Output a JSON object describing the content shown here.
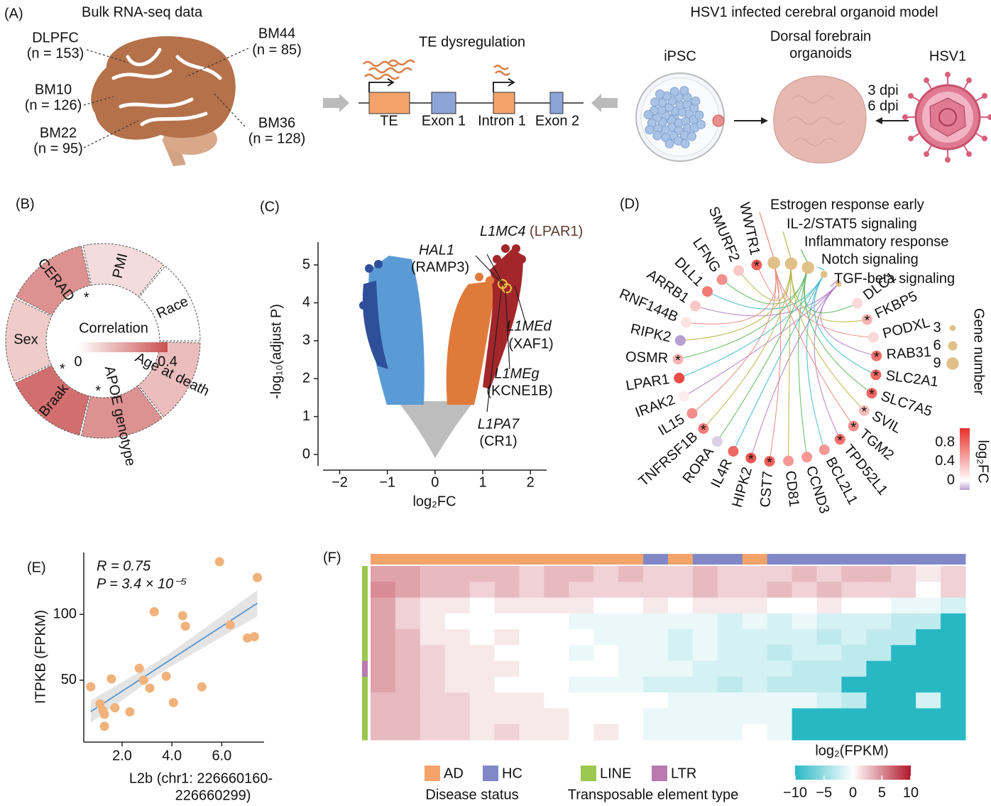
{
  "panel_labels": [
    "(A)",
    "(B)",
    "(C)",
    "(D)",
    "(E)",
    "(F)"
  ],
  "panel_a": {
    "title": "Bulk RNA-seq data",
    "regions": [
      {
        "name": "DLPFC",
        "n": "(n = 153)"
      },
      {
        "name": "BM44",
        "n": "(n = 85)"
      },
      {
        "name": "BM10",
        "n": "(n = 126)"
      },
      {
        "name": "BM22",
        "n": "(n = 95)"
      },
      {
        "name": "BM36",
        "n": "(n = 128)"
      }
    ],
    "te_title": "TE dysregulation",
    "gene_parts": [
      "TE",
      "Exon 1",
      "Intron 1",
      "Exon 2"
    ],
    "model_title": "HSV1 infected cerebral organoid model",
    "ipsc": "iPSC",
    "organoid": [
      "Dorsal forebrain",
      "organoids"
    ],
    "virus": "HSV1",
    "dpi": [
      "3 dpi",
      "6 dpi"
    ]
  },
  "panel_b": {
    "type": "donut",
    "categories": [
      "CERAD",
      "PMI",
      "Race",
      "Age at death",
      "APOE genotype",
      "Braak",
      "Sex"
    ],
    "values": [
      0.25,
      0.08,
      0.0,
      0.15,
      0.25,
      0.33,
      0.12
    ],
    "marks": [
      "*",
      null,
      null,
      null,
      "*",
      "*",
      null
    ],
    "legend_title": "Correlation",
    "legend_ticks": [
      0,
      0.4
    ],
    "color": "#c9504f"
  },
  "panel_c": {
    "type": "volcano",
    "xlabel": "log₂FC",
    "ylabel": "-log₁₀(adjust P)",
    "xlim": [
      -2.35,
      2.34
    ],
    "ylim": [
      -0.3,
      5.6
    ],
    "xticks": [
      {
        "value": -2,
        "label": "−2"
      },
      {
        "value": -1,
        "label": "−1"
      },
      0,
      1,
      2
    ],
    "yticks": [
      0,
      1,
      2,
      3,
      4,
      5
    ],
    "annotations": [
      {
        "gene": "L1MC4",
        "target": "(LPAR1)"
      },
      {
        "gene": "HAL1",
        "target": "(RAMP3)"
      },
      {
        "gene": "L1MEd",
        "target": "(XAF1)"
      },
      {
        "gene": "L1MEg",
        "target": "(KCNE1B)"
      },
      {
        "gene": "L1PA7",
        "target": "(CR1)"
      }
    ]
  },
  "panel_d": {
    "type": "network",
    "genes": [
      {
        "name": "WWTR1",
        "log2fc": 0.85,
        "mark": "*"
      },
      {
        "name": "SMURF2",
        "log2fc": 0.3
      },
      {
        "name": "LFNG",
        "log2fc": 0.6
      },
      {
        "name": "DLL1",
        "log2fc": 0.7
      },
      {
        "name": "ARRB1",
        "log2fc": 0.3
      },
      {
        "name": "RNF144B",
        "log2fc": 0.15
      },
      {
        "name": "RIPK2",
        "log2fc": -0.2
      },
      {
        "name": "OSMR",
        "log2fc": 0.4,
        "mark": "*"
      },
      {
        "name": "LPAR1",
        "log2fc": 0.95
      },
      {
        "name": "IRAK2",
        "log2fc": 0.1
      },
      {
        "name": "IL15",
        "log2fc": 0.6
      },
      {
        "name": "TNFRSF1B",
        "log2fc": 0.7,
        "mark": "*"
      },
      {
        "name": "RORA",
        "log2fc": -0.1
      },
      {
        "name": "IL4R",
        "log2fc": 0.8
      },
      {
        "name": "HIPK2",
        "log2fc": 0.9,
        "mark": "*"
      },
      {
        "name": "CST7",
        "log2fc": 0.85,
        "mark": "*"
      },
      {
        "name": "CD81",
        "log2fc": 0.55
      },
      {
        "name": "CCND3",
        "log2fc": 0.55
      },
      {
        "name": "BCL2L1",
        "log2fc": 0.55
      },
      {
        "name": "TPD52L1",
        "log2fc": 0.75,
        "mark": "*"
      },
      {
        "name": "TGM2",
        "log2fc": 0.6,
        "mark": "*"
      },
      {
        "name": "SVIL",
        "log2fc": 0.35,
        "mark": "*"
      },
      {
        "name": "SLC7A5",
        "log2fc": 0.8,
        "mark": "*"
      },
      {
        "name": "SLC2A1",
        "log2fc": 0.8,
        "mark": "*"
      },
      {
        "name": "RAB31",
        "log2fc": 0.75,
        "mark": "*"
      },
      {
        "name": "PODXL",
        "log2fc": 0.2
      },
      {
        "name": "FKBP5",
        "log2fc": 0.4,
        "mark": "*"
      },
      {
        "name": "DLC1",
        "log2fc": 0.2
      }
    ],
    "pathways": [
      {
        "name": "Estrogen response early",
        "size": 9,
        "color": "#e98a7a"
      },
      {
        "name": "IL-2/STAT5 signaling",
        "size": 9,
        "color": "#b7b64a"
      },
      {
        "name": "Inflammatory response",
        "size": 9,
        "color": "#5cb85c"
      },
      {
        "name": "Notch signaling",
        "size": 4,
        "color": "#3fb8c8"
      },
      {
        "name": "TGF-beta signaling",
        "size": 3,
        "color": "#b57cc8"
      }
    ],
    "size_legend_title": "Gene number",
    "size_ticks": [
      3,
      6,
      9
    ],
    "color_title": "log₂FC",
    "color_ticks": [
      0,
      0.4,
      0.8
    ],
    "color_lim": [
      -0.2,
      1.1
    ]
  },
  "panel_e": {
    "type": "scatter",
    "stats": [
      "R = 0.75",
      "P = 3.4 × 10⁻⁵"
    ],
    "ylabel": "ITPKB (FPKM)",
    "xlabel": [
      "L2b (chr1: 226660160-",
      "226660299)"
    ],
    "x": [
      0.74,
      1.11,
      1.23,
      1.29,
      1.29,
      1.57,
      1.71,
      2.31,
      2.69,
      2.86,
      3.11,
      3.29,
      3.77,
      4.06,
      4.43,
      4.54,
      5.2,
      5.91,
      6.34,
      7.03,
      7.31,
      7.43
    ],
    "values": [
      45,
      32,
      27,
      24,
      15,
      51,
      29,
      26,
      59,
      50,
      44,
      102,
      53,
      33,
      99,
      91,
      45,
      140,
      92,
      82,
      83,
      128
    ],
    "color": "#f0b27a",
    "xlim": [
      0.46,
      7.7
    ],
    "ylim": [
      3,
      147
    ],
    "xticks": [
      {
        "value": 2,
        "label": "2.0"
      },
      {
        "value": 4,
        "label": "4.0"
      },
      {
        "value": 6,
        "label": "6.0"
      }
    ],
    "yticks": [
      50,
      100
    ]
  },
  "panel_f": {
    "type": "heatmap",
    "status": [
      "AD",
      "AD",
      "AD",
      "AD",
      "AD",
      "AD",
      "AD",
      "AD",
      "AD",
      "AD",
      "AD",
      "HC",
      "AD",
      "HC",
      "HC",
      "AD",
      "HC",
      "HC",
      "HC",
      "HC",
      "HC",
      "HC",
      "HC",
      "HC"
    ],
    "te_types": [
      "LINE",
      "LINE",
      "LINE",
      "LINE",
      "LINE",
      "LINE",
      "LTR",
      "LINE",
      "LINE",
      "LINE",
      "LINE"
    ],
    "values": [
      [
        4,
        4,
        3,
        3,
        3,
        3,
        2,
        3,
        3,
        2,
        3,
        2,
        2,
        3,
        2,
        2,
        2,
        3,
        2,
        3,
        3,
        2,
        1,
        2
      ],
      [
        5,
        4,
        3,
        3,
        2,
        3,
        2,
        3,
        2,
        2,
        2,
        2,
        2,
        3,
        2,
        2,
        3,
        2,
        3,
        2,
        2,
        2,
        0,
        2
      ],
      [
        4,
        2,
        1,
        1,
        0,
        1,
        1,
        1,
        1,
        0,
        0,
        1,
        0,
        1,
        1,
        1,
        0,
        0,
        1,
        0,
        0,
        -1,
        -1,
        -2
      ],
      [
        4,
        2,
        1,
        0,
        0,
        0,
        0,
        0,
        -1,
        -1,
        -1,
        -1,
        -1,
        -1,
        -2,
        -1,
        -2,
        -1,
        -2,
        -2,
        -2,
        -3,
        -3,
        -10
      ],
      [
        4,
        3,
        1,
        1,
        0,
        1,
        0,
        0,
        0,
        -1,
        -1,
        -1,
        -2,
        -1,
        -2,
        -2,
        -2,
        -2,
        -3,
        -2,
        -3,
        -3,
        -10,
        -10
      ],
      [
        4,
        3,
        2,
        1,
        1,
        0,
        0,
        0,
        -1,
        0,
        -1,
        -1,
        -2,
        -1,
        -2,
        -2,
        -3,
        -2,
        -2,
        -3,
        -3,
        -10,
        -10,
        -10
      ],
      [
        4,
        3,
        2,
        1,
        1,
        1,
        0,
        0,
        0,
        0,
        -1,
        -1,
        -1,
        -2,
        -2,
        -2,
        -2,
        -3,
        -3,
        -3,
        -10,
        -10,
        -10,
        -10
      ],
      [
        4,
        3,
        2,
        1,
        1,
        0,
        0,
        0,
        -1,
        -1,
        -1,
        -2,
        -2,
        -2,
        -3,
        -2,
        -3,
        -3,
        -3,
        -10,
        -10,
        -10,
        -10,
        -10
      ],
      [
        3,
        3,
        2,
        2,
        1,
        1,
        1,
        0,
        0,
        0,
        0,
        0,
        -1,
        -1,
        -1,
        -1,
        -1,
        -1,
        -2,
        -3,
        -10,
        -10,
        -2,
        -10
      ],
      [
        3,
        3,
        2,
        2,
        1,
        1,
        1,
        1,
        0,
        0,
        0,
        -1,
        -1,
        -1,
        -1,
        -1,
        -1,
        -10,
        -10,
        -10,
        -10,
        -10,
        -10,
        -10
      ],
      [
        3,
        3,
        2,
        2,
        1,
        2,
        1,
        1,
        0,
        1,
        0,
        -1,
        -1,
        -1,
        -1,
        0,
        -1,
        -10,
        -10,
        -10,
        -10,
        -10,
        -10,
        -10
      ]
    ],
    "status_colors": {
      "AD": "#f4a46a",
      "HC": "#8088c8"
    },
    "type_colors": {
      "LINE": "#9ac850",
      "LTR": "#b87ab0"
    },
    "status_legend": [
      "AD",
      "HC"
    ],
    "status_title": "Disease status",
    "type_legend": [
      "LINE",
      "LTR"
    ],
    "type_title": "Transposable element type",
    "color_title": "log₂(FPKM)",
    "color_ticks": [
      {
        "value": -10,
        "label": "−10"
      },
      {
        "value": -5,
        "label": "−5"
      },
      0,
      5,
      10
    ],
    "color_lim": [
      -10,
      10
    ]
  }
}
